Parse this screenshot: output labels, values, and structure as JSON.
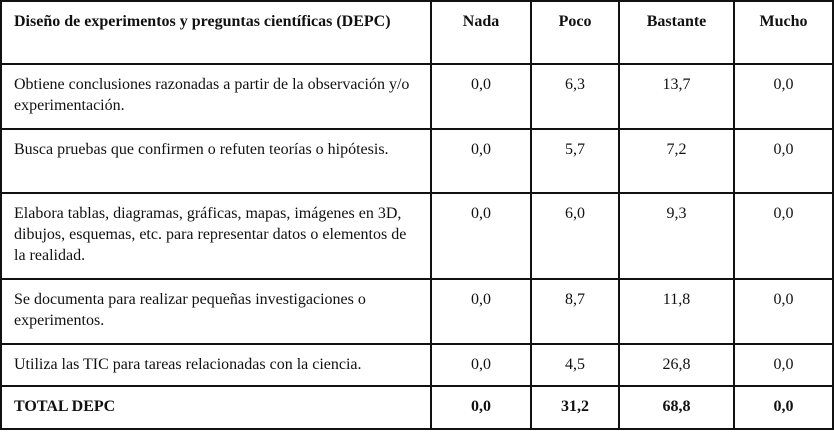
{
  "table": {
    "header": [
      "Diseño de experimentos y preguntas científicas (DEPC)",
      "Nada",
      "Poco",
      "Bastante",
      "Mucho"
    ],
    "rows": [
      [
        "Obtiene conclusiones razonadas a partir de la observación y/o experimentación.",
        "0,0",
        "6,3",
        "13,7",
        "0,0"
      ],
      [
        "Busca pruebas que confirmen o refuten teorías o hipótesis.",
        "0,0",
        "5,7",
        "7,2",
        "0,0"
      ],
      [
        "Elabora tablas, diagramas, gráficas, mapas, imágenes en 3D, dibujos, esquemas, etc. para representar datos o elementos de la realidad.",
        "0,0",
        "6,0",
        "9,3",
        "0,0"
      ],
      [
        "Se documenta para realizar pequeñas investigaciones o experimentos.",
        "0,0",
        "8,7",
        "11,8",
        "0,0"
      ],
      [
        "Utiliza las TIC para tareas relacionadas con la ciencia.",
        "0,0",
        "4,5",
        "26,8",
        "0,0"
      ],
      [
        "TOTAL DEPC",
        "0,0",
        "31,2",
        "68,8",
        "0,0"
      ]
    ]
  }
}
